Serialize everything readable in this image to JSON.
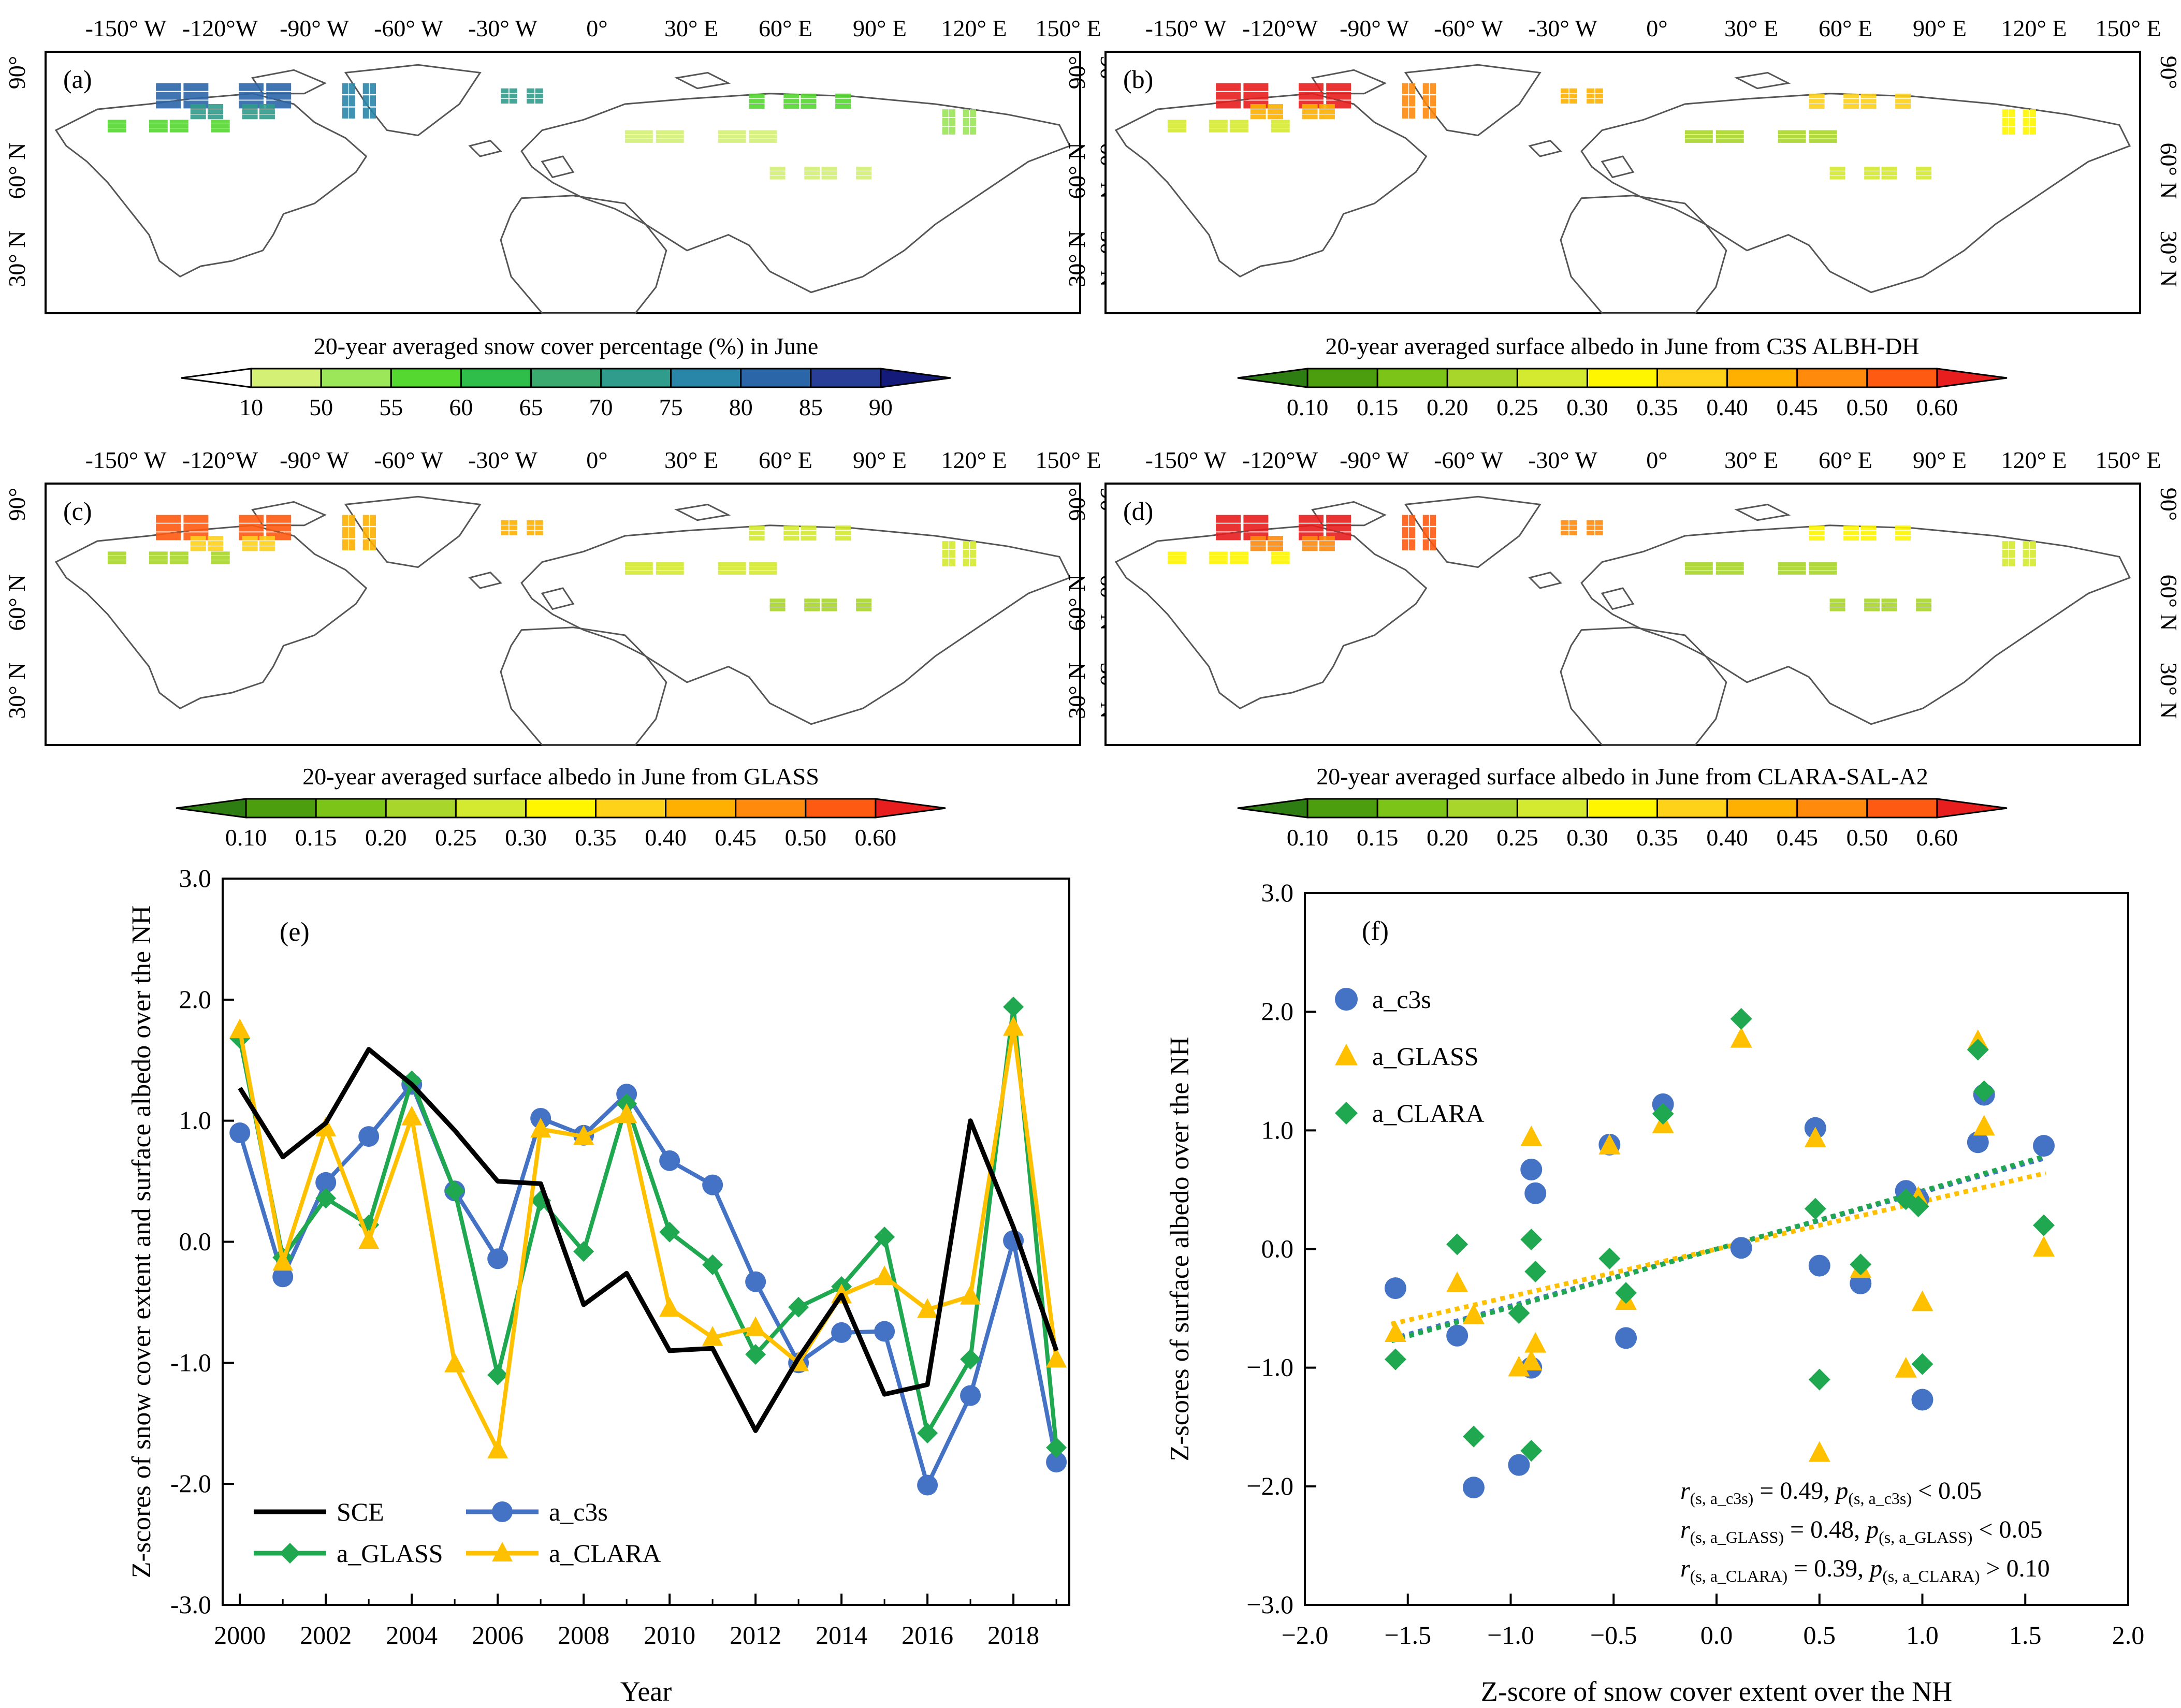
{
  "maps": [
    {
      "panel": "(a)",
      "lon_labels": [
        "-150° W",
        "-120°W",
        "-90° W",
        "-60° W",
        "-30° W",
        "0°",
        "30° E",
        "60° E",
        "90° E",
        "120° E",
        "150° E"
      ],
      "lat_labels": [
        "90°",
        "60° N",
        "30° N"
      ],
      "colorbar_title": "20-year averaged snow cover percentage (%) in June",
      "colorbar_ticks": [
        "10",
        "50",
        "55",
        "60",
        "65",
        "70",
        "75",
        "80",
        "85",
        "90"
      ],
      "colorbar_colors": [
        "#ffffff",
        "#d4f075",
        "#9be659",
        "#55d830",
        "#2fbe4a",
        "#3aaa6e",
        "#2f9c8c",
        "#2a86a8",
        "#2b66a8",
        "#283e97",
        "#141a7a"
      ]
    },
    {
      "panel": "(b)",
      "lon_labels": [
        "-150° W",
        "-120°W",
        "-90° W",
        "-60° W",
        "-30° W",
        "0°",
        "30° E",
        "60° E",
        "90° E",
        "120° E",
        "150° E"
      ],
      "lat_labels": [
        "90°",
        "60° N",
        "30° N"
      ],
      "colorbar_title": "20-year averaged surface albedo in June from C3S ALBH-DH",
      "colorbar_ticks": [
        "0.10",
        "0.15",
        "0.20",
        "0.25",
        "0.30",
        "0.35",
        "0.40",
        "0.45",
        "0.50",
        "0.60"
      ],
      "colorbar_colors": [
        "#2e7d12",
        "#4d9e0f",
        "#7cc418",
        "#a8d62a",
        "#d4ea30",
        "#fff600",
        "#ffd21a",
        "#ffb000",
        "#ff8a0c",
        "#ff5a12",
        "#e81e1e"
      ]
    },
    {
      "panel": "(c)",
      "lon_labels": [
        "-150° W",
        "-120°W",
        "-90° W",
        "-60° W",
        "-30° W",
        "0°",
        "30° E",
        "60° E",
        "90° E",
        "120° E",
        "150° E"
      ],
      "lat_labels": [
        "90°",
        "60° N",
        "30° N"
      ],
      "colorbar_title": "20-year averaged surface albedo in June from GLASS",
      "colorbar_ticks": [
        "0.10",
        "0.15",
        "0.20",
        "0.25",
        "0.30",
        "0.35",
        "0.40",
        "0.45",
        "0.50",
        "0.60"
      ],
      "colorbar_colors": [
        "#2e7d12",
        "#4d9e0f",
        "#7cc418",
        "#a8d62a",
        "#d4ea30",
        "#fff600",
        "#ffd21a",
        "#ffb000",
        "#ff8a0c",
        "#ff5a12",
        "#e81e1e"
      ]
    },
    {
      "panel": "(d)",
      "lon_labels": [
        "-150° W",
        "-120°W",
        "-90° W",
        "-60° W",
        "-30° W",
        "0°",
        "30° E",
        "60° E",
        "90° E",
        "120° E",
        "150° E"
      ],
      "lat_labels": [
        "90°",
        "60° N",
        "30° N"
      ],
      "colorbar_title": "20-year averaged surface albedo in June from CLARA-SAL-A2",
      "colorbar_ticks": [
        "0.10",
        "0.15",
        "0.20",
        "0.25",
        "0.30",
        "0.35",
        "0.40",
        "0.45",
        "0.50",
        "0.60"
      ],
      "colorbar_colors": [
        "#2e7d12",
        "#4d9e0f",
        "#7cc418",
        "#a8d62a",
        "#d4ea30",
        "#fff600",
        "#ffd21a",
        "#ffb000",
        "#ff8a0c",
        "#ff5a12",
        "#e81e1e"
      ]
    }
  ],
  "chart_data": [
    {
      "panel": "(e)",
      "type": "line",
      "xlabel": "Year",
      "ylabel": "Z-scores of snow cover extent and surface albedo over the NH",
      "ylim": [
        -3,
        3
      ],
      "x_ticks": [
        "2000",
        "2002",
        "2004",
        "2006",
        "2008",
        "2010",
        "2012",
        "2014",
        "2016",
        "2018"
      ],
      "y_ticks": [
        "-3.0",
        "-2.0",
        "-1.0",
        "0.0",
        "1.0",
        "2.0",
        "3.0"
      ],
      "x": [
        2000,
        2001,
        2002,
        2003,
        2004,
        2005,
        2006,
        2007,
        2008,
        2009,
        2010,
        2011,
        2012,
        2013,
        2014,
        2015,
        2016,
        2017,
        2018,
        2019
      ],
      "series": [
        {
          "name": "SCE",
          "color": "#000000",
          "marker": "none",
          "values": [
            1.27,
            0.7,
            0.98,
            1.59,
            1.3,
            0.92,
            0.5,
            0.48,
            -0.52,
            -0.26,
            -0.9,
            -0.88,
            -1.56,
            -0.96,
            -0.44,
            -1.26,
            -1.18,
            1.0,
            0.12,
            -0.9
          ]
        },
        {
          "name": "a_c3s",
          "color": "#4472c4",
          "marker": "circle",
          "values": [
            0.9,
            -0.29,
            0.49,
            0.87,
            1.3,
            0.42,
            -0.14,
            1.02,
            0.88,
            1.22,
            0.67,
            0.47,
            -0.33,
            -1.0,
            -0.75,
            -0.74,
            -2.01,
            -1.27,
            0.01,
            -1.82
          ]
        },
        {
          "name": "a_GLASS",
          "color": "#1fa84f",
          "marker": "diamond",
          "values": [
            1.68,
            -0.13,
            0.36,
            0.14,
            1.33,
            0.42,
            -1.1,
            0.34,
            -0.08,
            1.14,
            0.08,
            -0.19,
            -0.93,
            -0.54,
            -0.37,
            0.04,
            -1.58,
            -0.97,
            1.94,
            -1.7
          ]
        },
        {
          "name": "a_CLARA",
          "color": "#ffc000",
          "marker": "triangle",
          "values": [
            1.75,
            -0.17,
            0.94,
            0.01,
            1.03,
            -1.01,
            -1.72,
            0.93,
            0.87,
            1.05,
            -0.55,
            -0.79,
            -0.71,
            -1.0,
            -0.44,
            -0.29,
            -0.56,
            -0.45,
            1.77,
            -0.97
          ]
        }
      ]
    },
    {
      "panel": "(f)",
      "type": "scatter",
      "xlabel": "Z-score of snow cover extent over the NH",
      "ylabel": "Z-scores of surface albedo over the NH",
      "xlim": [
        -2,
        2
      ],
      "ylim": [
        -3,
        3
      ],
      "x_ticks": [
        "−2.0",
        "−1.5",
        "−1.0",
        "−0.5",
        "0.0",
        "0.5",
        "1.0",
        "1.5",
        "2.0"
      ],
      "y_ticks": [
        "−3.0",
        "−2.0",
        "−1.0",
        "0.0",
        "1.0",
        "2.0",
        "3.0"
      ],
      "x": [
        1.27,
        0.7,
        0.98,
        1.59,
        1.3,
        0.92,
        0.5,
        0.48,
        -0.52,
        -0.26,
        -0.9,
        -0.88,
        -1.56,
        -0.96,
        -0.44,
        -1.26,
        -1.18,
        1.0,
        0.12,
        -0.9
      ],
      "series": [
        {
          "name": "a_c3s",
          "color": "#4472c4",
          "marker": "circle",
          "values": [
            0.9,
            -0.29,
            0.42,
            0.87,
            1.3,
            0.49,
            -0.14,
            1.02,
            0.88,
            1.22,
            0.67,
            0.47,
            -0.33,
            -1.82,
            -0.75,
            -0.73,
            -2.01,
            -1.27,
            0.01,
            -1.0
          ]
        },
        {
          "name": "a_GLASS",
          "color": "#ffc000",
          "marker": "triangle",
          "values": [
            1.75,
            -0.17,
            0.43,
            0.01,
            1.03,
            -1.01,
            -1.72,
            0.93,
            0.87,
            1.05,
            -0.95,
            -0.8,
            -0.71,
            -1.0,
            -0.44,
            -0.29,
            -0.56,
            -0.45,
            1.77,
            0.94
          ]
        },
        {
          "name": "a_CLARA",
          "color": "#1fa84f",
          "marker": "diamond",
          "values": [
            1.68,
            -0.13,
            0.36,
            0.2,
            1.33,
            0.42,
            -1.1,
            0.34,
            -0.08,
            1.14,
            -1.7,
            -0.19,
            -0.93,
            -0.54,
            -0.37,
            0.04,
            -1.58,
            -0.97,
            1.94,
            0.08
          ]
        }
      ],
      "trend_lines": [
        {
          "name": "a_c3s",
          "color": "#4472c4",
          "slope": 0.48,
          "intercept": 0.0
        },
        {
          "name": "a_GLASS",
          "color": "#ffc000",
          "slope": 0.4,
          "intercept": 0.0
        },
        {
          "name": "a_CLARA",
          "color": "#1fa84f",
          "slope": 0.49,
          "intercept": 0.0
        }
      ],
      "stats": [
        {
          "r_sub": "(s, a_c3s)",
          "r_val": "= 0.49,",
          "p_sub": "(s, a_c3s)",
          "p_val": "< 0.05"
        },
        {
          "r_sub": "(s, a_GLASS)",
          "r_val": "= 0.48,",
          "p_sub": "(s, a_GLASS)",
          "p_val": "< 0.05"
        },
        {
          "r_sub": "(s, a_CLARA)",
          "r_val": "= 0.39,",
          "p_sub": "(s, a_CLARA)",
          "p_val": "> 0.10"
        }
      ]
    }
  ]
}
